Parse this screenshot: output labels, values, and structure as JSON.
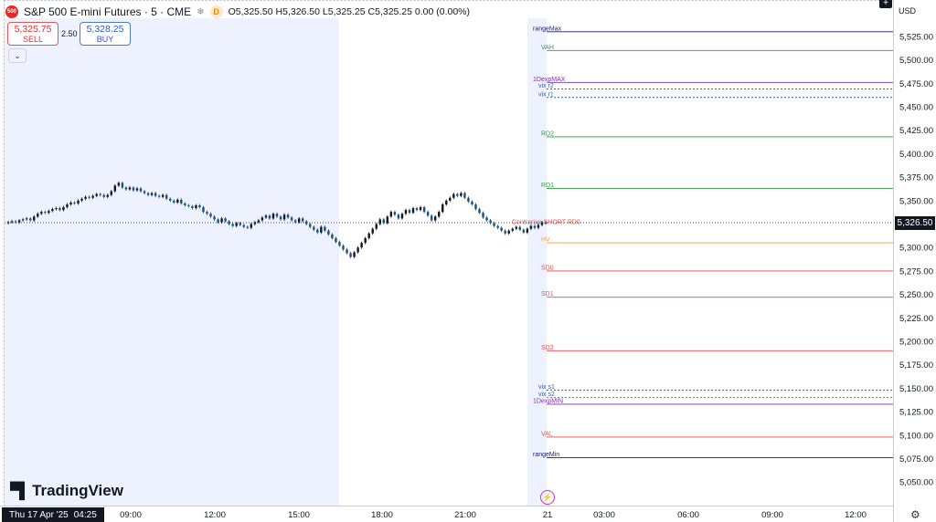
{
  "header": {
    "symbol_logo": "500",
    "title": "S&P 500 E-mini Futures · 5 · CME",
    "ohlc": "O5,325.50 H5,326.50 L5,325.25 C5,325.25 0.00 (0.00%)",
    "flag_icon": "snowflake-icon",
    "d_badge": "D"
  },
  "trade": {
    "sell_price": "5,325.75",
    "sell_label": "SELL",
    "spread": "2.50",
    "buy_price": "5,328.25",
    "buy_label": "BUY"
  },
  "axis": {
    "currency": "USD",
    "last_price": "5,326.50",
    "crosshair_date": "Thu 17 Apr '25",
    "crosshair_time": "04:25",
    "add_icon": "+"
  },
  "branding": {
    "logo_text": "TradingView"
  },
  "colors": {
    "up": "#131722",
    "down": "#1f4e79",
    "session_bg": "#eef2ff",
    "green": "#2e9b43",
    "red": "#e84c4c",
    "purple": "#7b2fa5",
    "blue": "#2a5bd0",
    "navy": "#1a1a6e",
    "orange": "#f29d38"
  },
  "chart_data": {
    "type": "candlestick",
    "y_ticks": [
      5525,
      5500,
      5475,
      5450,
      5425,
      5400,
      5375,
      5350,
      5325,
      5300,
      5275,
      5250,
      5225,
      5200,
      5175,
      5150,
      5125,
      5100,
      5075,
      5050
    ],
    "ylim": [
      5037,
      5537
    ],
    "x_tick_labels": [
      "09:00",
      "12:00",
      "15:00",
      "18:00",
      "21:00",
      "21",
      "03:00",
      "06:00",
      "09:00",
      "12:00"
    ],
    "current_price": 5326.5,
    "levels": [
      {
        "label": "rangeMax",
        "value": 5530,
        "color": "navy"
      },
      {
        "label": "VAH",
        "value": 5510,
        "color": "green"
      },
      {
        "label": "1DexpMAX",
        "value": 5476,
        "color": "purple"
      },
      {
        "label": "vix r2",
        "value": 5469,
        "color": "blue",
        "dashed": true
      },
      {
        "label": "vix r1",
        "value": 5460,
        "color": "blue",
        "dashed": true
      },
      {
        "label": "RD2",
        "value": 5418,
        "color": "green"
      },
      {
        "label": "RD1",
        "value": 5363,
        "color": "green"
      },
      {
        "label": "Contrarian SHORT RD0",
        "value": 5330,
        "color": "red",
        "note": true
      },
      {
        "label": "HV",
        "value": 5305,
        "color": "orange"
      },
      {
        "label": "SD0",
        "value": 5275,
        "color": "red"
      },
      {
        "label": "SD1",
        "value": 5247,
        "color": "red"
      },
      {
        "label": "SD2",
        "value": 5190,
        "color": "red"
      },
      {
        "label": "vix s1",
        "value": 5148,
        "color": "blue",
        "dashed": true
      },
      {
        "label": "vix s2",
        "value": 5140,
        "color": "blue",
        "dashed": true
      },
      {
        "label": "1DexpMIN",
        "value": 5133,
        "color": "purple"
      },
      {
        "label": "VAL",
        "value": 5098,
        "color": "red"
      },
      {
        "label": "rangeMin",
        "value": 5076,
        "color": "navy"
      }
    ],
    "price_path": [
      5326,
      5327,
      5328,
      5327,
      5329,
      5330,
      5331,
      5329,
      5333,
      5336,
      5338,
      5337,
      5339,
      5341,
      5342,
      5340,
      5343,
      5346,
      5348,
      5347,
      5350,
      5352,
      5354,
      5353,
      5355,
      5357,
      5356,
      5354,
      5356,
      5360,
      5366,
      5369,
      5364,
      5362,
      5364,
      5361,
      5363,
      5360,
      5358,
      5356,
      5358,
      5355,
      5354,
      5356,
      5352,
      5350,
      5348,
      5351,
      5347,
      5345,
      5344,
      5342,
      5345,
      5343,
      5338,
      5336,
      5333,
      5330,
      5327,
      5331,
      5328,
      5325,
      5323,
      5326,
      5324,
      5322,
      5321,
      5325,
      5327,
      5329,
      5332,
      5334,
      5331,
      5336,
      5333,
      5330,
      5335,
      5332,
      5329,
      5327,
      5331,
      5328,
      5325,
      5322,
      5319,
      5316,
      5322,
      5318,
      5314,
      5310,
      5306,
      5302,
      5298,
      5294,
      5290,
      5295,
      5300,
      5305,
      5310,
      5315,
      5320,
      5325,
      5330,
      5326,
      5333,
      5338,
      5335,
      5331,
      5336,
      5340,
      5337,
      5342,
      5340,
      5343,
      5338,
      5334,
      5329,
      5333,
      5338,
      5346,
      5350,
      5353,
      5357,
      5355,
      5358,
      5353,
      5349,
      5346,
      5341,
      5337,
      5332,
      5329,
      5326,
      5323,
      5321,
      5318,
      5315,
      5318,
      5320,
      5322,
      5319,
      5316,
      5320,
      5323,
      5321,
      5324,
      5327,
      5326
    ]
  }
}
